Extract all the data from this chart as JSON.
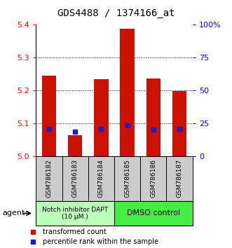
{
  "title": "GDS4488 / 1374166_at",
  "samples": [
    "GSM786182",
    "GSM786183",
    "GSM786184",
    "GSM786185",
    "GSM786186",
    "GSM786187"
  ],
  "transformed_counts": [
    5.245,
    5.063,
    5.235,
    5.387,
    5.237,
    5.198
  ],
  "percentile_ranks": [
    5.083,
    5.075,
    5.083,
    5.093,
    5.08,
    5.083
  ],
  "ymin": 5.0,
  "ymax": 5.4,
  "yticks": [
    5.0,
    5.1,
    5.2,
    5.3,
    5.4
  ],
  "y2ticks_pct": [
    0,
    25,
    50,
    75,
    100
  ],
  "y2labels": [
    "0",
    "25",
    "50",
    "75",
    "100%"
  ],
  "bar_color": "#CC1100",
  "percentile_color": "#1122CC",
  "group1_label": "Notch inhibitor DAPT\n(10 μM.)",
  "group2_label": "DMSO control",
  "group1_bg": "#BBFFBB",
  "group2_bg": "#44EE44",
  "sample_bg": "#CCCCCC",
  "agent_label": "agent",
  "legend1": "transformed count",
  "legend2": "percentile rank within the sample",
  "bar_width": 0.55
}
